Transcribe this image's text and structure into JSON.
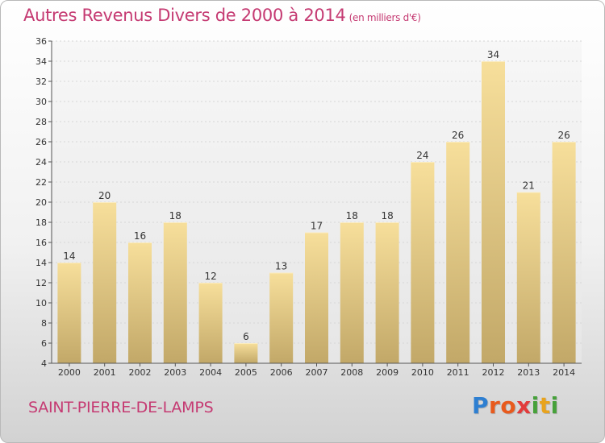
{
  "title": "Autres Revenus Divers de 2000 à 2014",
  "subtitle": "(en milliers d'€)",
  "commune": "SAINT-PIERRE-DE-LAMPS",
  "logo": {
    "letters": [
      "P",
      "r",
      "o",
      "x",
      "i",
      "t",
      "i"
    ],
    "colors": [
      "#2e7fd1",
      "#e85a1d",
      "#e85a1d",
      "#e23b3b",
      "#46a13a",
      "#e8a31d",
      "#46a13a"
    ]
  },
  "colors": {
    "title": "#c53a72",
    "bar_light": "#f7df9b",
    "bar_dark": "#c2a868"
  },
  "chart_data": {
    "type": "bar",
    "categories": [
      "2000",
      "2001",
      "2002",
      "2003",
      "2004",
      "2005",
      "2006",
      "2007",
      "2008",
      "2009",
      "2010",
      "2011",
      "2012",
      "2013",
      "2014"
    ],
    "values": [
      14,
      20,
      16,
      18,
      12,
      6,
      13,
      17,
      18,
      18,
      24,
      26,
      34,
      21,
      26
    ],
    "ylim": [
      4,
      36
    ],
    "yticks": [
      4,
      6,
      8,
      10,
      12,
      14,
      16,
      18,
      20,
      22,
      24,
      26,
      28,
      30,
      32,
      34,
      36
    ],
    "grid": true,
    "data_labels": true
  }
}
